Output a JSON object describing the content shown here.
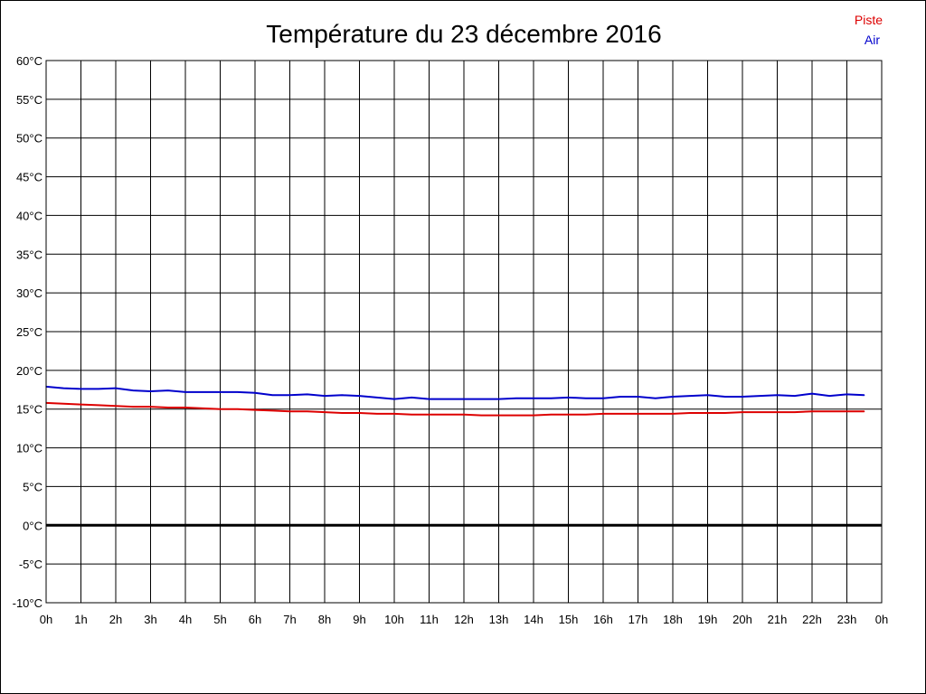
{
  "chart_data": {
    "type": "line",
    "title": "Température du 23 décembre 2016",
    "xlabel": "",
    "ylabel": "",
    "x_tick_labels": [
      "0h",
      "1h",
      "2h",
      "3h",
      "4h",
      "5h",
      "6h",
      "7h",
      "8h",
      "9h",
      "10h",
      "11h",
      "12h",
      "13h",
      "14h",
      "15h",
      "16h",
      "17h",
      "18h",
      "19h",
      "20h",
      "21h",
      "22h",
      "23h",
      "0h"
    ],
    "y_tick_labels": [
      "60°C",
      "55°C",
      "50°C",
      "45°C",
      "40°C",
      "35°C",
      "30°C",
      "25°C",
      "20°C",
      "15°C",
      "10°C",
      "5°C",
      "0°C",
      "-5°C",
      "-10°C"
    ],
    "xlim": [
      0,
      24
    ],
    "ylim": [
      -10,
      60
    ],
    "grid": true,
    "legend_placement": "top-right",
    "zero_line": 0,
    "series": [
      {
        "name": "Piste",
        "color": "#dd0000",
        "x": [
          0,
          0.5,
          1,
          1.5,
          2,
          2.5,
          3,
          3.5,
          4,
          4.5,
          5,
          5.5,
          6,
          6.5,
          7,
          7.5,
          8,
          8.5,
          9,
          9.5,
          10,
          10.5,
          11,
          11.5,
          12,
          12.5,
          13,
          13.5,
          14,
          14.5,
          15,
          15.5,
          16,
          16.5,
          17,
          17.5,
          18,
          18.5,
          19,
          19.5,
          20,
          20.5,
          21,
          21.5,
          22,
          22.5,
          23,
          23.5
        ],
        "values": [
          15.8,
          15.7,
          15.6,
          15.5,
          15.4,
          15.3,
          15.3,
          15.2,
          15.2,
          15.1,
          15.0,
          15.0,
          14.9,
          14.8,
          14.7,
          14.7,
          14.6,
          14.5,
          14.5,
          14.4,
          14.4,
          14.3,
          14.3,
          14.3,
          14.3,
          14.2,
          14.2,
          14.2,
          14.2,
          14.3,
          14.3,
          14.3,
          14.4,
          14.4,
          14.4,
          14.4,
          14.4,
          14.5,
          14.5,
          14.5,
          14.6,
          14.6,
          14.6,
          14.6,
          14.7,
          14.7,
          14.7,
          14.7
        ]
      },
      {
        "name": "Air",
        "color": "#0000cc",
        "x": [
          0,
          0.5,
          1,
          1.5,
          2,
          2.5,
          3,
          3.5,
          4,
          4.5,
          5,
          5.5,
          6,
          6.5,
          7,
          7.5,
          8,
          8.5,
          9,
          9.5,
          10,
          10.5,
          11,
          11.5,
          12,
          12.5,
          13,
          13.5,
          14,
          14.5,
          15,
          15.5,
          16,
          16.5,
          17,
          17.5,
          18,
          18.5,
          19,
          19.5,
          20,
          20.5,
          21,
          21.5,
          22,
          22.5,
          23,
          23.5
        ],
        "values": [
          17.9,
          17.7,
          17.6,
          17.6,
          17.7,
          17.4,
          17.3,
          17.4,
          17.2,
          17.2,
          17.2,
          17.2,
          17.1,
          16.8,
          16.8,
          16.9,
          16.7,
          16.8,
          16.7,
          16.5,
          16.3,
          16.5,
          16.3,
          16.3,
          16.3,
          16.3,
          16.3,
          16.4,
          16.4,
          16.4,
          16.5,
          16.4,
          16.4,
          16.6,
          16.6,
          16.4,
          16.6,
          16.7,
          16.8,
          16.6,
          16.6,
          16.7,
          16.8,
          16.7,
          17.0,
          16.7,
          16.9,
          16.8
        ]
      }
    ]
  }
}
